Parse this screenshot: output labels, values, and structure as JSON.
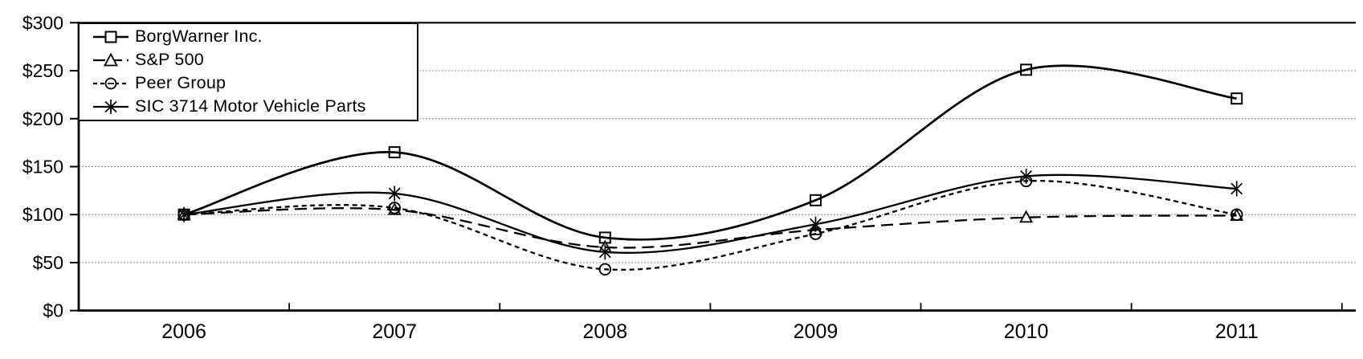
{
  "chart_data": {
    "type": "line",
    "x_labels": [
      "2006",
      "2007",
      "2008",
      "2009",
      "2010",
      "2011"
    ],
    "y_ticks": [
      {
        "value": 0,
        "label": "$0"
      },
      {
        "value": 50,
        "label": "$50"
      },
      {
        "value": 100,
        "label": "$100"
      },
      {
        "value": 150,
        "label": "$150"
      },
      {
        "value": 200,
        "label": "$200"
      },
      {
        "value": 250,
        "label": "$250"
      },
      {
        "value": 300,
        "label": "$300"
      }
    ],
    "ylim": [
      0,
      300
    ],
    "y_major_unit": 50,
    "grid": "horizontal",
    "line_smoothing": true,
    "legend_position": "top-left-inside",
    "series": [
      {
        "name": "BorgWarner Inc.",
        "marker": "square",
        "line_style": "solid",
        "values": [
          100,
          165,
          76,
          115,
          251,
          221
        ]
      },
      {
        "name": "S&P 500",
        "marker": "triangle",
        "line_style": "long-dash",
        "values": [
          100,
          105,
          66,
          84,
          97,
          99
        ]
      },
      {
        "name": "Peer Group",
        "marker": "circle",
        "line_style": "short-dash",
        "values": [
          100,
          107,
          43,
          80,
          135,
          100
        ]
      },
      {
        "name": "SIC 3714 Motor Vehicle Parts",
        "marker": "asterisk",
        "line_style": "solid",
        "values": [
          100,
          122,
          61,
          90,
          140,
          127
        ]
      }
    ],
    "colors": {
      "series": "#000000",
      "axis": "#000000",
      "grid": "#8a8a8a",
      "background": "#ffffff"
    }
  }
}
